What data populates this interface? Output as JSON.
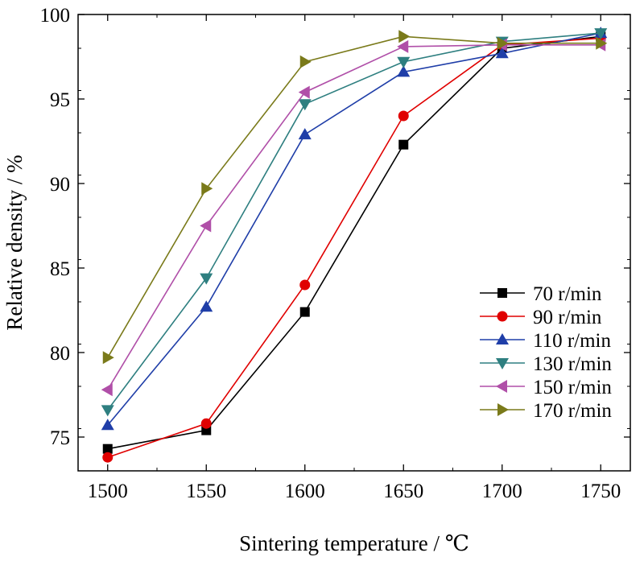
{
  "chart_data": {
    "type": "line",
    "xlabel": "Sintering temperature / ℃",
    "ylabel": "Relative density / %",
    "x": [
      1500,
      1550,
      1600,
      1650,
      1700,
      1750
    ],
    "xlim": [
      1485,
      1765
    ],
    "ylim": [
      73,
      100
    ],
    "xticks": [
      1500,
      1550,
      1600,
      1650,
      1700,
      1750
    ],
    "yticks": [
      75,
      80,
      85,
      90,
      95,
      100
    ],
    "xtick_labels": [
      "1500",
      "1550",
      "1600",
      "1650",
      "1700",
      "1750"
    ],
    "ytick_labels": [
      "75",
      "80",
      "85",
      "90",
      "95",
      "100"
    ],
    "grid": false,
    "legend_position": "bottom-right",
    "series": [
      {
        "name": "70 r/min",
        "color": "#000000",
        "marker": "square",
        "values": [
          74.3,
          75.4,
          82.4,
          92.3,
          98.0,
          98.7
        ]
      },
      {
        "name": "90 r/min",
        "color": "#e00000",
        "marker": "circle",
        "values": [
          73.8,
          75.8,
          84.0,
          94.0,
          98.2,
          98.6
        ]
      },
      {
        "name": "110 r/min",
        "color": "#1f3ea8",
        "marker": "triangle-up",
        "values": [
          75.7,
          82.7,
          92.9,
          96.6,
          97.7,
          98.9
        ]
      },
      {
        "name": "130 r/min",
        "color": "#2e7f80",
        "marker": "triangle-down",
        "values": [
          76.6,
          84.4,
          94.7,
          97.2,
          98.4,
          98.9
        ]
      },
      {
        "name": "150 r/min",
        "color": "#b04fa8",
        "marker": "triangle-left",
        "values": [
          77.8,
          87.5,
          95.4,
          98.1,
          98.2,
          98.2
        ]
      },
      {
        "name": "170 r/min",
        "color": "#7a7a1a",
        "marker": "triangle-right",
        "values": [
          79.7,
          89.7,
          97.2,
          98.7,
          98.3,
          98.3
        ]
      }
    ]
  }
}
